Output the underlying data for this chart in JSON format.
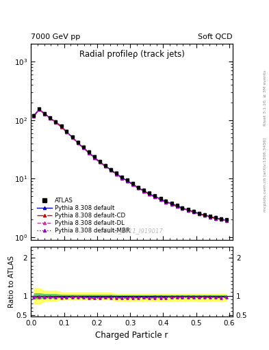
{
  "title_top_left": "7000 GeV pp",
  "title_top_right": "Soft QCD",
  "main_title": "Radial profileρ (track jets)",
  "watermark": "ATLAS_2011_I919017",
  "right_label_top": "Rivet 3.1.10, ≥ 3M events",
  "right_label_bot": "mcplots.cern.ch [arXiv:1306.3436]",
  "xlabel": "Charged Particle r",
  "ylabel_ratio": "Ratio to ATLAS",
  "ylim_main": [
    0.9,
    2000
  ],
  "ylim_ratio": [
    0.45,
    2.3
  ],
  "xlim": [
    0.0,
    0.61
  ],
  "r_values": [
    0.008,
    0.025,
    0.042,
    0.058,
    0.075,
    0.092,
    0.108,
    0.125,
    0.142,
    0.158,
    0.175,
    0.192,
    0.208,
    0.225,
    0.242,
    0.258,
    0.275,
    0.292,
    0.308,
    0.325,
    0.342,
    0.358,
    0.375,
    0.392,
    0.408,
    0.425,
    0.442,
    0.458,
    0.475,
    0.492,
    0.508,
    0.525,
    0.542,
    0.558,
    0.575,
    0.592
  ],
  "atlas_values": [
    120,
    155,
    130,
    110,
    95,
    80,
    65,
    52,
    42,
    35,
    29,
    24,
    20,
    17,
    14.5,
    12.5,
    10.8,
    9.5,
    8.3,
    7.2,
    6.4,
    5.7,
    5.1,
    4.6,
    4.2,
    3.8,
    3.5,
    3.2,
    3.0,
    2.8,
    2.6,
    2.45,
    2.3,
    2.2,
    2.1,
    2.0
  ],
  "atlas_errors": [
    6,
    6,
    5,
    4,
    3.5,
    3,
    2.5,
    2,
    1.8,
    1.5,
    1.2,
    1.0,
    0.9,
    0.8,
    0.7,
    0.6,
    0.5,
    0.45,
    0.4,
    0.35,
    0.3,
    0.28,
    0.25,
    0.22,
    0.2,
    0.18,
    0.16,
    0.15,
    0.14,
    0.13,
    0.12,
    0.11,
    0.1,
    0.09,
    0.09,
    0.08
  ],
  "py8_default": [
    118,
    153,
    128,
    108,
    93,
    78,
    63,
    51,
    41,
    34,
    28,
    23,
    19.5,
    16.5,
    14.2,
    12.2,
    10.5,
    9.2,
    8.1,
    7.0,
    6.2,
    5.5,
    5.0,
    4.5,
    4.1,
    3.75,
    3.45,
    3.15,
    2.95,
    2.75,
    2.55,
    2.4,
    2.25,
    2.15,
    2.05,
    1.95
  ],
  "py8_cd": [
    115,
    150,
    125,
    106,
    91,
    76,
    62,
    50,
    40.5,
    33.5,
    27.5,
    22.5,
    19,
    16.2,
    13.8,
    11.9,
    10.2,
    9.0,
    7.9,
    6.85,
    6.1,
    5.4,
    4.85,
    4.38,
    4.0,
    3.65,
    3.35,
    3.08,
    2.88,
    2.68,
    2.5,
    2.35,
    2.2,
    2.1,
    2.0,
    1.92
  ],
  "py8_dl": [
    117,
    152,
    127,
    107,
    92,
    77,
    62.5,
    50.5,
    40.8,
    33.8,
    27.8,
    22.8,
    19.2,
    16.3,
    13.9,
    12.0,
    10.3,
    9.1,
    8.0,
    6.9,
    6.15,
    5.45,
    4.88,
    4.42,
    4.02,
    3.68,
    3.38,
    3.1,
    2.9,
    2.7,
    2.52,
    2.37,
    2.22,
    2.12,
    2.02,
    1.95
  ],
  "py8_mbr": [
    116,
    151,
    126,
    107,
    92,
    77,
    62,
    50,
    40.5,
    33.5,
    27.5,
    22.5,
    19,
    16.2,
    13.8,
    11.9,
    10.2,
    9.0,
    7.9,
    6.85,
    6.1,
    5.4,
    4.85,
    4.38,
    4.0,
    3.65,
    3.35,
    3.08,
    2.88,
    2.68,
    2.5,
    2.35,
    2.2,
    2.1,
    2.0,
    1.92
  ],
  "atlas_color": "#000000",
  "py8_default_color": "#0000cc",
  "py8_cd_color": "#cc0000",
  "py8_dl_color": "#cc3399",
  "py8_mbr_color": "#9900cc",
  "band_yellow": "#ffff66",
  "band_green": "#66cc66",
  "legend_labels": [
    "ATLAS",
    "Pythia 8.308 default",
    "Pythia 8.308 default-CD",
    "Pythia 8.308 default-DL",
    "Pythia 8.308 default-MBR"
  ],
  "ratio_yticks": [
    0.5,
    1.0,
    2.0
  ],
  "ratio_ytick_labels": [
    "0.5",
    "1",
    "2"
  ]
}
